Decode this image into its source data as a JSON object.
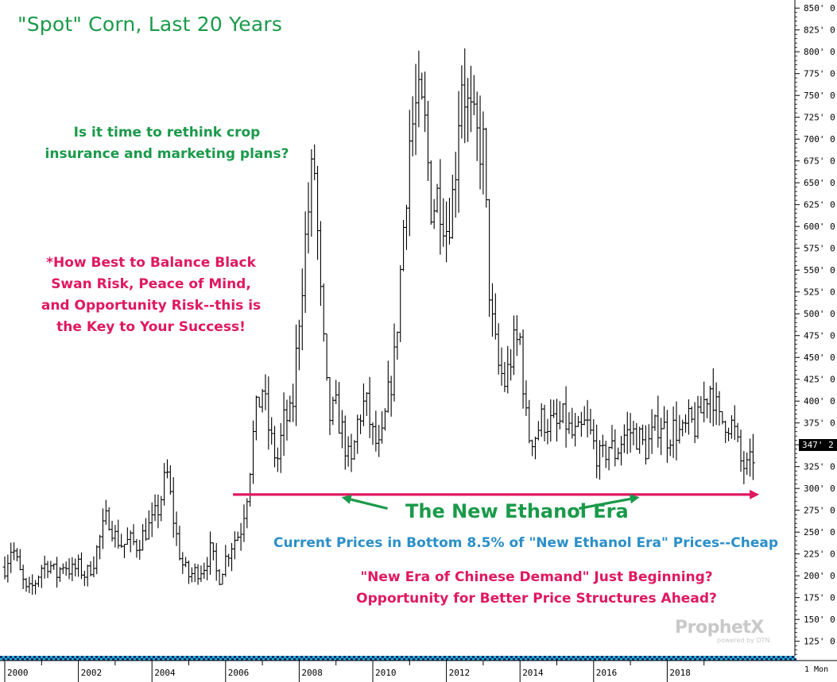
{
  "chart_data": {
    "type": "ohlc",
    "title": "\"Spot\" Corn, Last 20 Years",
    "xlabel": "",
    "ylabel": "",
    "ylim": [
      100,
      860
    ],
    "x_range": [
      1999.92,
      2020.55
    ],
    "grid": false,
    "y_ticks": [
      "850' 0",
      "825' 0",
      "800' 0",
      "775' 0",
      "750' 0",
      "725' 0",
      "700' 0",
      "675' 0",
      "650' 0",
      "625' 0",
      "600' 0",
      "575' 0",
      "550' 0",
      "525' 0",
      "500' 0",
      "475' 0",
      "450' 0",
      "425' 0",
      "400' 0",
      "375' 0",
      "350' 0",
      "325' 0",
      "300' 0",
      "275' 0",
      "250' 0",
      "225' 0",
      "200' 0",
      "175' 0",
      "150' 0",
      "125' 0"
    ],
    "y_tick_values": [
      850,
      825,
      800,
      775,
      750,
      725,
      700,
      675,
      650,
      625,
      600,
      575,
      550,
      525,
      500,
      475,
      450,
      425,
      400,
      375,
      350,
      325,
      300,
      275,
      250,
      225,
      200,
      175,
      150,
      125
    ],
    "x_ticks": [
      "2000",
      "2002",
      "2004",
      "2006",
      "2008",
      "2010",
      "2012",
      "2014",
      "2016",
      "2018"
    ],
    "x_tick_values": [
      2000,
      2002,
      2004,
      2006,
      2008,
      2010,
      2012,
      2014,
      2016,
      2018
    ],
    "last_price_label": "347' 2",
    "last_price": 347.25,
    "period_label": "1 Mon",
    "reference_line": {
      "value": 293,
      "x_start": 2006.2,
      "x_end": 2020.5,
      "color": "#e0185f"
    },
    "arrows": [
      {
        "from": [
          2010.4,
          277
        ],
        "to": [
          2009.15,
          290
        ],
        "color": "#1a9a4a"
      },
      {
        "from": [
          2015.6,
          277
        ],
        "to": [
          2017.25,
          290
        ],
        "color": "#1a9a4a"
      }
    ],
    "monthly_closes": [
      [
        2000.0,
        210
      ],
      [
        2000.2,
        235
      ],
      [
        2000.4,
        205
      ],
      [
        2000.6,
        180
      ],
      [
        2000.8,
        190
      ],
      [
        2001.0,
        210
      ],
      [
        2001.2,
        215
      ],
      [
        2001.4,
        200
      ],
      [
        2001.6,
        215
      ],
      [
        2001.8,
        205
      ],
      [
        2002.0,
        210
      ],
      [
        2002.2,
        200
      ],
      [
        2002.4,
        215
      ],
      [
        2002.6,
        245
      ],
      [
        2002.8,
        270
      ],
      [
        2003.0,
        245
      ],
      [
        2003.2,
        235
      ],
      [
        2003.4,
        240
      ],
      [
        2003.6,
        235
      ],
      [
        2003.8,
        250
      ],
      [
        2004.0,
        260
      ],
      [
        2004.2,
        280
      ],
      [
        2004.4,
        320
      ],
      [
        2004.6,
        260
      ],
      [
        2004.8,
        215
      ],
      [
        2005.0,
        200
      ],
      [
        2005.2,
        205
      ],
      [
        2005.4,
        210
      ],
      [
        2005.6,
        230
      ],
      [
        2005.8,
        195
      ],
      [
        2006.0,
        220
      ],
      [
        2006.2,
        240
      ],
      [
        2006.4,
        250
      ],
      [
        2006.6,
        300
      ],
      [
        2006.8,
        380
      ],
      [
        2007.0,
        415
      ],
      [
        2007.2,
        360
      ],
      [
        2007.4,
        330
      ],
      [
        2007.6,
        380
      ],
      [
        2007.8,
        380
      ],
      [
        2008.0,
        500
      ],
      [
        2008.2,
        600
      ],
      [
        2008.4,
        680
      ],
      [
        2008.6,
        500
      ],
      [
        2008.8,
        380
      ],
      [
        2009.0,
        390
      ],
      [
        2009.2,
        360
      ],
      [
        2009.4,
        320
      ],
      [
        2009.6,
        380
      ],
      [
        2009.8,
        400
      ],
      [
        2010.0,
        360
      ],
      [
        2010.2,
        340
      ],
      [
        2010.4,
        400
      ],
      [
        2010.6,
        450
      ],
      [
        2010.8,
        580
      ],
      [
        2011.0,
        700
      ],
      [
        2011.2,
        740
      ],
      [
        2011.4,
        720
      ],
      [
        2011.6,
        620
      ],
      [
        2011.8,
        640
      ],
      [
        2012.0,
        600
      ],
      [
        2012.2,
        640
      ],
      [
        2012.4,
        780
      ],
      [
        2012.6,
        730
      ],
      [
        2012.8,
        700
      ],
      [
        2013.0,
        690
      ],
      [
        2013.2,
        500
      ],
      [
        2013.4,
        440
      ],
      [
        2013.6,
        420
      ],
      [
        2013.8,
        460
      ],
      [
        2014.0,
        470
      ],
      [
        2014.2,
        360
      ],
      [
        2014.4,
        360
      ],
      [
        2014.6,
        380
      ],
      [
        2014.8,
        375
      ],
      [
        2015.0,
        370
      ],
      [
        2015.2,
        380
      ],
      [
        2015.4,
        360
      ],
      [
        2015.6,
        360
      ],
      [
        2015.8,
        375
      ],
      [
        2016.0,
        350
      ],
      [
        2016.2,
        330
      ],
      [
        2016.4,
        350
      ],
      [
        2016.6,
        340
      ],
      [
        2016.8,
        360
      ],
      [
        2017.0,
        365
      ],
      [
        2017.2,
        360
      ],
      [
        2017.4,
        345
      ],
      [
        2017.6,
        360
      ],
      [
        2017.8,
        380
      ],
      [
        2018.0,
        360
      ],
      [
        2018.2,
        370
      ],
      [
        2018.4,
        360
      ],
      [
        2018.6,
        375
      ],
      [
        2018.8,
        370
      ],
      [
        2019.0,
        400
      ],
      [
        2019.2,
        420
      ],
      [
        2019.4,
        375
      ],
      [
        2019.6,
        380
      ],
      [
        2019.8,
        370
      ],
      [
        2020.0,
        330
      ],
      [
        2020.2,
        320
      ],
      [
        2020.4,
        347
      ]
    ]
  },
  "annotations": {
    "title": "\"Spot\" Corn, Last 20 Years",
    "question_line1": "Is it time to rethink crop",
    "question_line2": "insurance and marketing plans?",
    "balance_line1": "*How Best to Balance Black",
    "balance_line2": "Swan Risk, Peace of Mind,",
    "balance_line3": "and Opportunity Risk--this is",
    "balance_line4": "the Key to Your Success!",
    "era_label": "The New Ethanol Era",
    "current_prices": "Current Prices in Bottom 8.5% of \"New Ethanol Era\" Prices--Cheap",
    "chinese_line1": "\"New Era of Chinese Demand\" Just Beginning?",
    "chinese_line2": "Opportunity for Better Price Structures Ahead?"
  },
  "branding": {
    "logo": "ProphetX",
    "logo_sub": "powered by DTN"
  },
  "colors": {
    "green": "#1a9a4a",
    "pink": "#e0185f",
    "blue": "#2a8fc9",
    "bars": "#000000",
    "strip_cyan": "#1fb6d8",
    "strip_navy": "#1a2a6c"
  }
}
